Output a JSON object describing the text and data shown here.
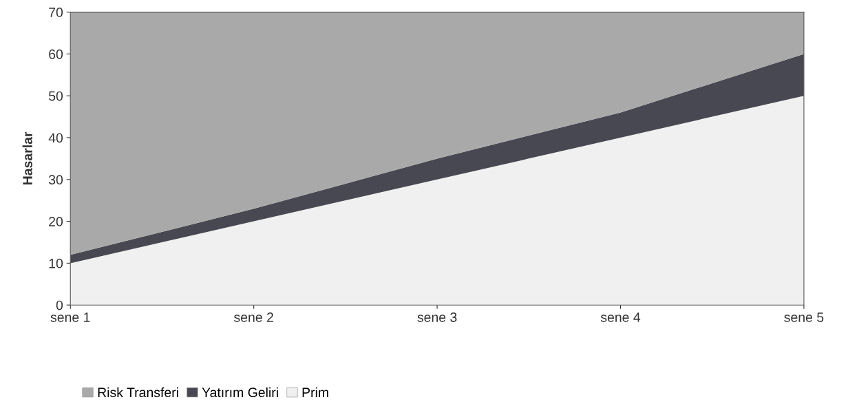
{
  "chart_data": {
    "type": "area",
    "stacked": true,
    "ylabel": "Hasarlar",
    "categories": [
      "sene 1",
      "sene 2",
      "sene 3",
      "sene 4",
      "sene 5"
    ],
    "series": [
      {
        "name": "Prim",
        "color": "#f0f0f0",
        "values": [
          10,
          20,
          30,
          40,
          50
        ]
      },
      {
        "name": "Yatırım Geliri",
        "color": "#484852",
        "values": [
          2,
          3,
          5,
          6,
          10
        ]
      },
      {
        "name": "Risk Transferi",
        "color": "#a9a9a9",
        "values": [
          58,
          47,
          35,
          24,
          10
        ]
      }
    ],
    "ylim": [
      0,
      70
    ],
    "yticks": [
      0,
      10,
      20,
      30,
      40,
      50,
      60,
      70
    ],
    "grid": false,
    "legend": "bottom left"
  }
}
